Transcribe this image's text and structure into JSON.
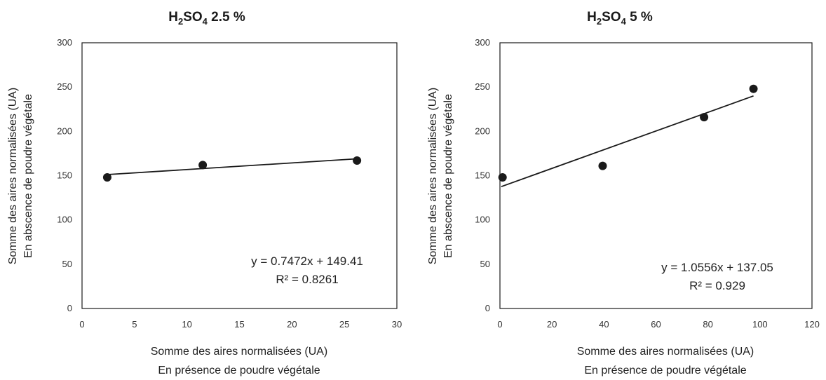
{
  "chart_data": [
    {
      "type": "scatter",
      "title_main": "H",
      "title_sub1": "2",
      "title_mid": "SO",
      "title_sub2": "4",
      "title_end": " 2.5 %",
      "xlabel_line1": "Somme des aires normalisées (UA)",
      "xlabel_line2": "En présence de poudre végétale",
      "ylabel_line1": "Somme des aires normalisées (UA)",
      "ylabel_line2": "En abscence de poudre végétale",
      "xlim": [
        0,
        30
      ],
      "ylim": [
        0,
        300
      ],
      "xticks": [
        0,
        5,
        10,
        15,
        20,
        25,
        30
      ],
      "yticks": [
        0,
        50,
        100,
        150,
        200,
        250,
        300
      ],
      "points": [
        {
          "x": 2.4,
          "y": 148
        },
        {
          "x": 11.5,
          "y": 162
        },
        {
          "x": 26.2,
          "y": 167
        }
      ],
      "trendline": {
        "slope": 0.7472,
        "intercept": 149.41,
        "x_range": [
          2.4,
          26.2
        ]
      },
      "equation": "y = 0.7472x + 149.41",
      "r2": "R² = 0.8261",
      "grid": false,
      "colors": {
        "marker": "#1a1a1a",
        "line": "#1a1a1a",
        "axis": "#7a7a7a"
      }
    },
    {
      "type": "scatter",
      "title_main": "H",
      "title_sub1": "2",
      "title_mid": "SO",
      "title_sub2": "4",
      "title_end": " 5 %",
      "xlabel_line1": "Somme des aires normalisées (UA)",
      "xlabel_line2": "En présence de poudre végétale",
      "ylabel_line1": "Somme des aires normalisées (UA)",
      "ylabel_line2": "En abscence de poudre végétale",
      "xlim": [
        0,
        120
      ],
      "ylim": [
        0,
        300
      ],
      "xticks": [
        0,
        20,
        40,
        60,
        80,
        100,
        120
      ],
      "yticks": [
        0,
        50,
        100,
        150,
        200,
        250,
        300
      ],
      "points": [
        {
          "x": 1,
          "y": 148
        },
        {
          "x": 39.5,
          "y": 161
        },
        {
          "x": 78.5,
          "y": 216
        },
        {
          "x": 97.5,
          "y": 248
        }
      ],
      "trendline": {
        "slope": 1.0556,
        "intercept": 137.05,
        "x_range": [
          0.5,
          97.5
        ]
      },
      "equation": "y = 1.0556x + 137.05",
      "r2": "R² = 0.929",
      "grid": false,
      "colors": {
        "marker": "#1a1a1a",
        "line": "#1a1a1a",
        "axis": "#7a7a7a"
      }
    }
  ]
}
